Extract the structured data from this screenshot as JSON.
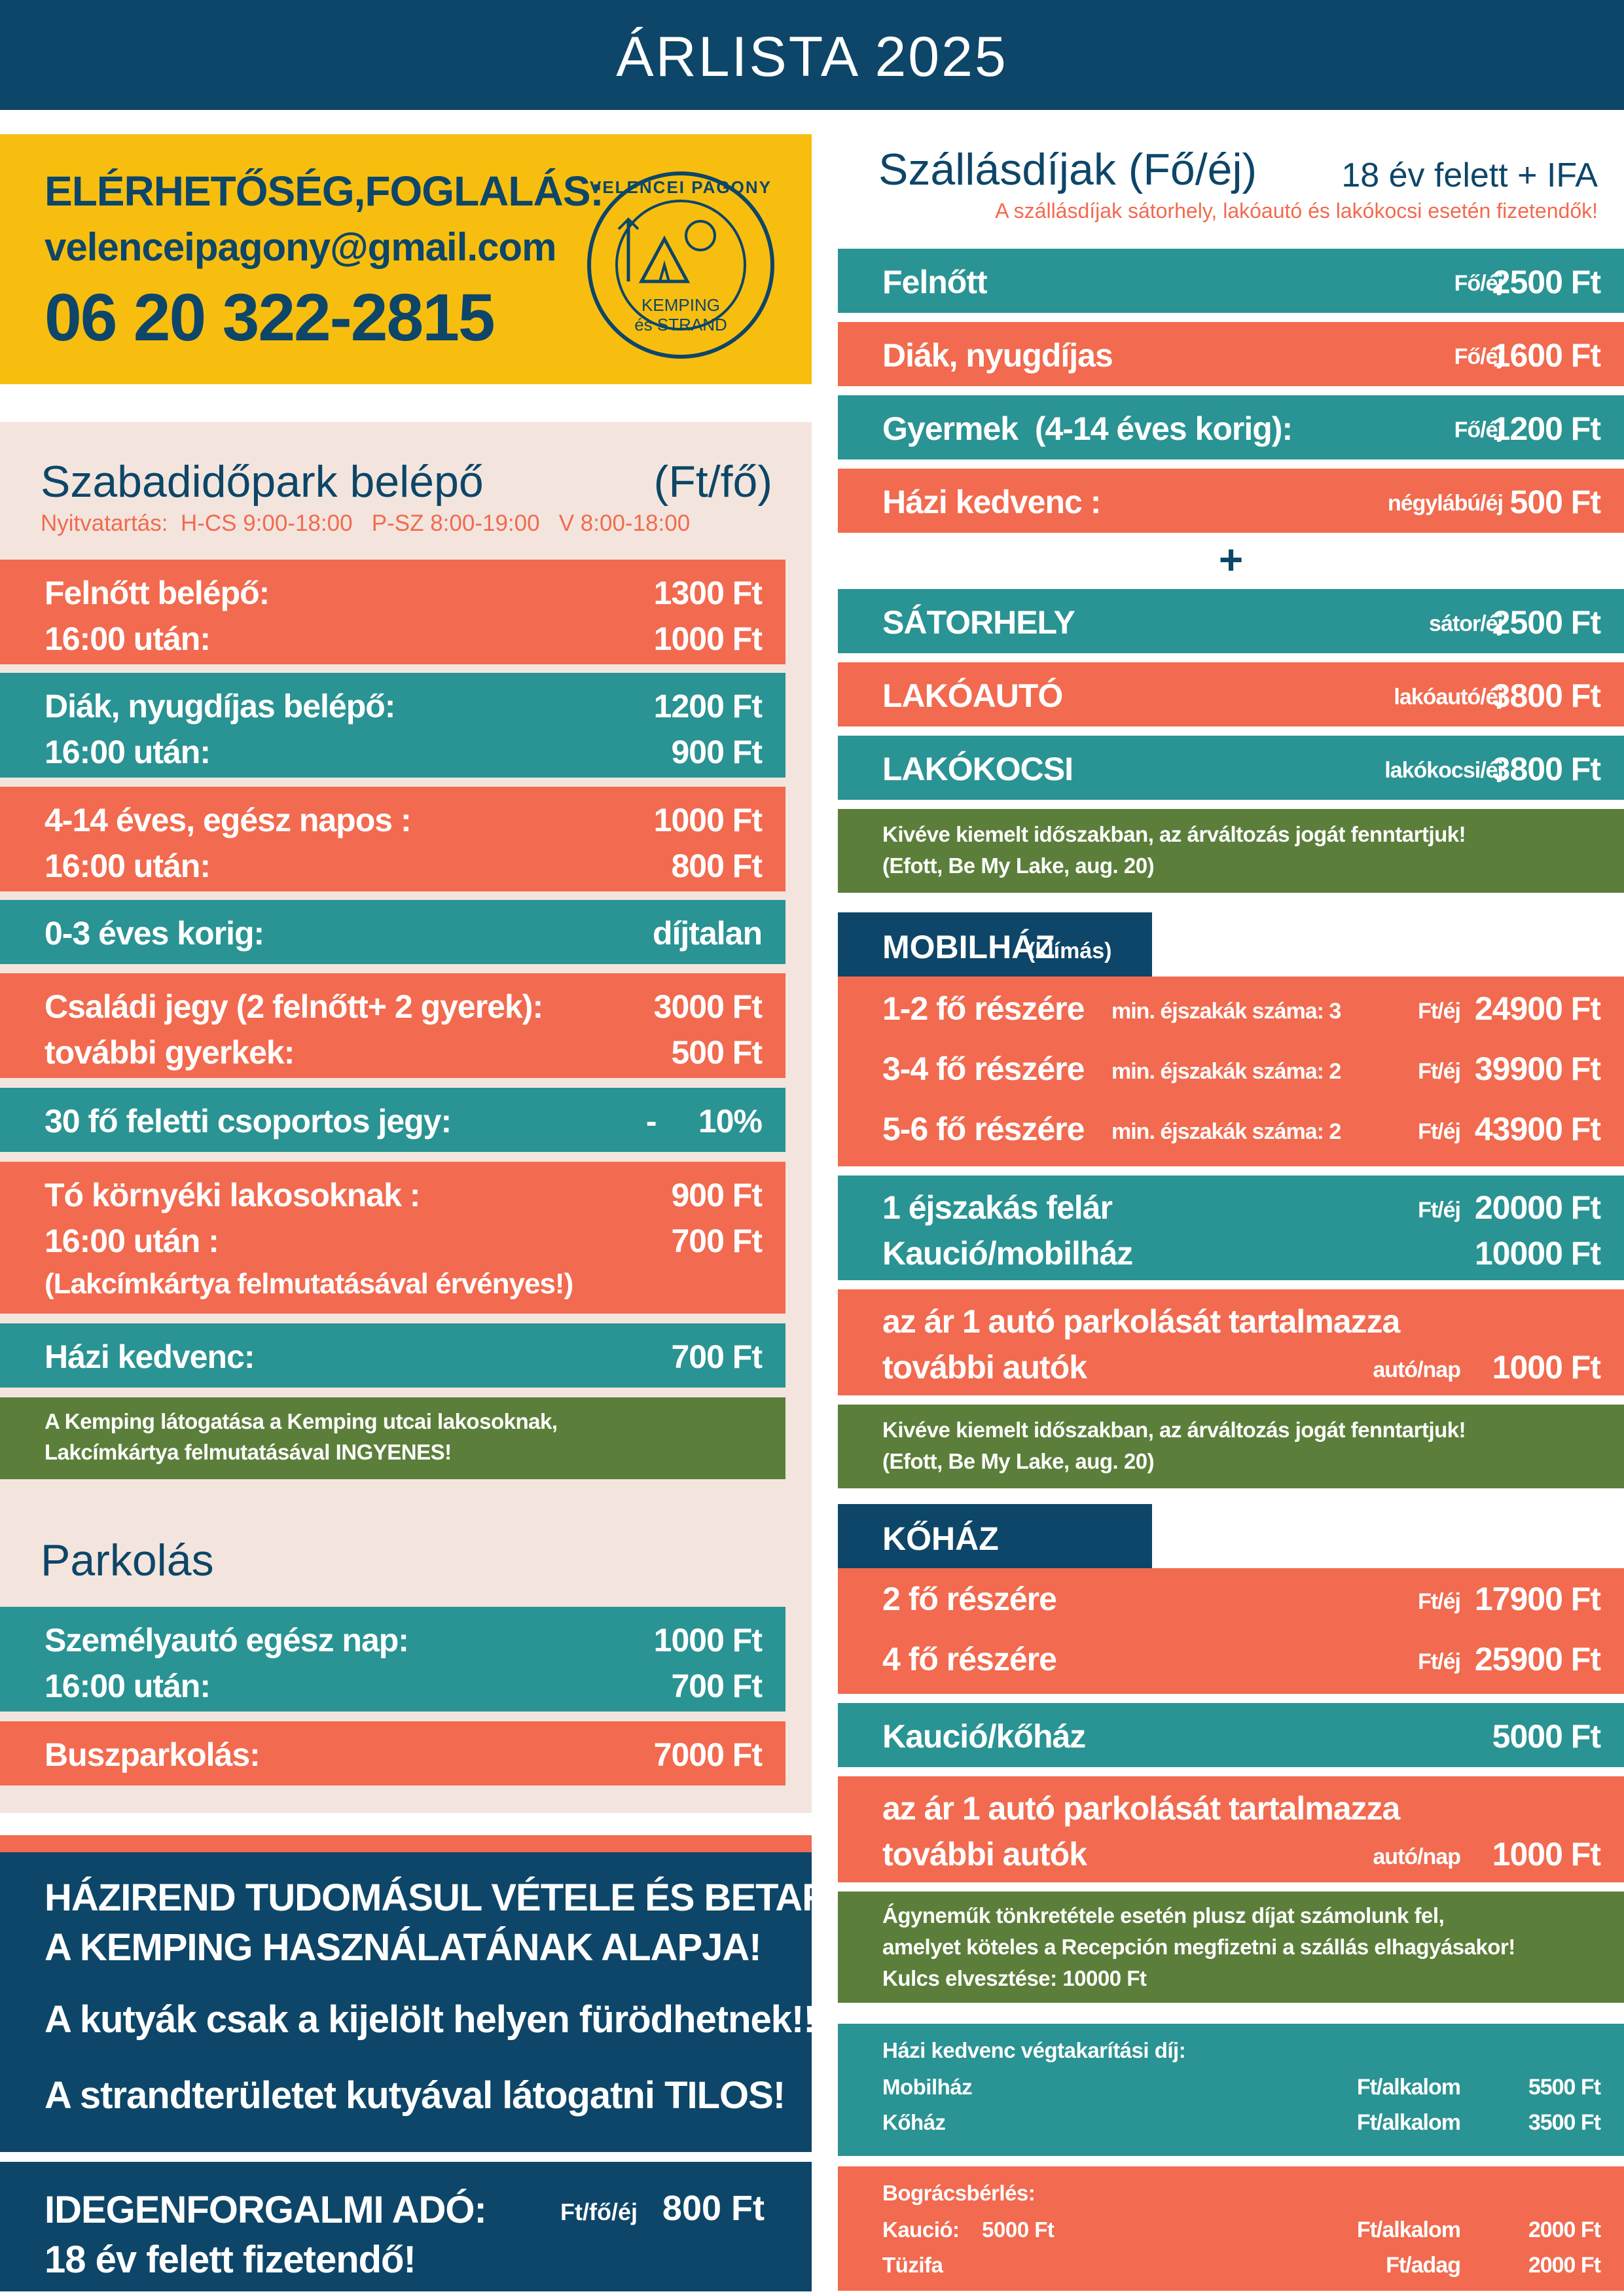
{
  "header": {
    "title": "ÁRLISTA 2025"
  },
  "contact": {
    "heading": "ELÉRHETŐSÉG,FOGLALÁS:",
    "email": "velenceipagony@gmail.com",
    "phone": "06 20 322-2815",
    "logo_top": "VELENCEI PAGONY",
    "logo_line1": "KEMPING",
    "logo_line2": "és STRAND"
  },
  "park": {
    "title": "Szabadidőpark belépő",
    "unit": "(Ft/fő)",
    "hours": "Nyitvatartás:  H-CS 9:00-18:00   P-SZ 8:00-19:00   V 8:00-18:00",
    "rows": [
      {
        "l1": "Felnőtt belépő:",
        "v1": "1300 Ft",
        "l2": "16:00 után:",
        "v2": "1000 Ft"
      },
      {
        "l1": "Diák, nyugdíjas belépő:",
        "v1": "1200 Ft",
        "l2": "16:00 után:",
        "v2": "900 Ft"
      },
      {
        "l1": "4-14  éves, egész napos :",
        "v1": "1000 Ft",
        "l2": "16:00 után:",
        "v2": "800 Ft"
      },
      {
        "l1": "0-3 éves korig:",
        "v1": "díjtalan"
      },
      {
        "l1": "Családi jegy (2 felnőtt+ 2 gyerek):",
        "v1": "3000 Ft",
        "l2": "további gyerkek:",
        "v2": "500 Ft"
      },
      {
        "l1": "30 fő feletti csoportos jegy:",
        "v1": "-     10%"
      },
      {
        "l1": "Tó környéki lakosoknak :",
        "v1": "900 Ft",
        "l2": "16:00 után :",
        "v2": "700 Ft",
        "l3": "(Lakcímkártya felmutatásával érvényes!)"
      },
      {
        "l1": "Házi kedvenc:",
        "v1": "700 Ft"
      }
    ],
    "note": [
      "A Kemping látogatása a Kemping utcai lakosoknak,",
      "Lakcímkártya felmutatásával INGYENES!"
    ]
  },
  "parking": {
    "title": "Parkolás",
    "rows": [
      {
        "l1": "Személyautó egész nap:",
        "v1": "1000 Ft",
        "l2": "16:00 után:",
        "v2": "700 Ft"
      },
      {
        "l1": "Buszparkolás:",
        "v1": "7000 Ft"
      }
    ]
  },
  "rules": {
    "lines": [
      "HÁZIREND TUDOMÁSUL VÉTELE ÉS BETARTÁSA",
      "A KEMPING HASZNÁLATÁNAK ALAPJA!",
      "A kutyák csak a kijelölt helyen füröd­hetnek!!",
      "A strandterületet kutyával látogatni TILOS!"
    ]
  },
  "tax": {
    "l1": "IDEGENFORGALMI ADÓ:",
    "unit": "Ft/fő/éj",
    "value": "800 Ft",
    "l2": "18 év felett fizetendő!"
  },
  "lodging": {
    "title": "Szállásdíjak (Fő/éj)",
    "right": "18 év felett + IFA",
    "sub": "A szállásdíjak sátorhely, lakóautó és lakókocsi esetén fizetendők!",
    "rows": [
      {
        "label": "Felnőtt",
        "unit": "Fő/éj",
        "value": "2500 Ft"
      },
      {
        "label": "Diák, nyugdíjas",
        "unit": "Fő/éj",
        "value": "1600 Ft"
      },
      {
        "label": "Gyermek  (4-14 éves korig):",
        "unit": "Fő/éj",
        "value": "1200 Ft"
      },
      {
        "label": "Házi kedvenc :",
        "unit": "négylábú/éj",
        "value": "500 Ft"
      }
    ],
    "plus": "+",
    "rows2": [
      {
        "label": "SÁTORHELY",
        "unit": "sátor/éj",
        "value": "2500 Ft"
      },
      {
        "label": "LAKÓAUTÓ",
        "unit": "lakóautó/éj",
        "value": "3800 Ft"
      },
      {
        "label": "LAKÓKOCSI",
        "unit": "lakókocsi/éj",
        "value": "3800 Ft"
      }
    ],
    "note": [
      "Kivéve kiemelt időszakban, az árváltozás jogát fenntartjuk!",
      "(Efott, Be My Lake, aug. 20)"
    ]
  },
  "mobil": {
    "title": "MOBILHÁZ",
    "title_small": "(klímás)",
    "rows": [
      {
        "label": "1-2 fő részére",
        "min": "min. éjszakák száma: 3",
        "unit": "Ft/éj",
        "value": "24900 Ft"
      },
      {
        "label": "3-4 fő részére",
        "min": "min. éjszakák száma: 2",
        "unit": "Ft/éj",
        "value": "39900 Ft"
      },
      {
        "label": "5-6 fő részére",
        "min": "min. éjszakák száma: 2",
        "unit": "Ft/éj",
        "value": "43900 Ft"
      }
    ],
    "extra": {
      "l1": "1 éjszakás felár",
      "u1": "Ft/éj",
      "v1": "20000 Ft",
      "l2": "Kaució/mobilház",
      "v2": "10000 Ft"
    },
    "car": {
      "l1": "az ár 1 autó parkolását tartalmazza",
      "l2": "további autók",
      "unit": "autó/nap",
      "value": "1000 Ft"
    },
    "note": [
      "Kivéve kiemelt időszakban, az árváltozás jogát fenntartjuk!",
      "(Efott, Be My Lake, aug. 20)"
    ]
  },
  "kohaz": {
    "title": "KŐHÁZ",
    "rows": [
      {
        "label": "2 fő részére",
        "unit": "Ft/éj",
        "value": "17900 Ft"
      },
      {
        "label": "4 fő részére",
        "unit": "Ft/éj",
        "value": "25900 Ft"
      }
    ],
    "kaucio": {
      "label": "Kaució/kőház",
      "value": "5000 Ft"
    },
    "car": {
      "l1": "az ár 1 autó parkolását tartalmazza",
      "l2": "további autók",
      "unit": "autó/nap",
      "value": "1000 Ft"
    },
    "note": [
      "Ágyneműk tönkretétele esetén plusz díjat számolunk fel,",
      "amelyet köteles a Recepción megfizetni a szállás elhagyásakor!",
      "Kulcs elvesztése: 10000 Ft"
    ]
  },
  "cleaning": {
    "title": "Házi kedvenc végtakarítási díj:",
    "rows": [
      {
        "label": "Mobilház",
        "unit": "Ft/alkalom",
        "value": "5500 Ft"
      },
      {
        "label": "Kőház",
        "unit": "Ft/alkalom",
        "value": "3500 Ft"
      }
    ]
  },
  "bogracs": {
    "title": "Bográcsbérlés:",
    "rows": [
      {
        "label": "Kaució:    5000 Ft",
        "unit": "Ft/alkalom",
        "value": "2000 Ft"
      },
      {
        "label": "Tüzifa",
        "unit": "Ft/adag",
        "value": "2000 Ft"
      }
    ]
  }
}
